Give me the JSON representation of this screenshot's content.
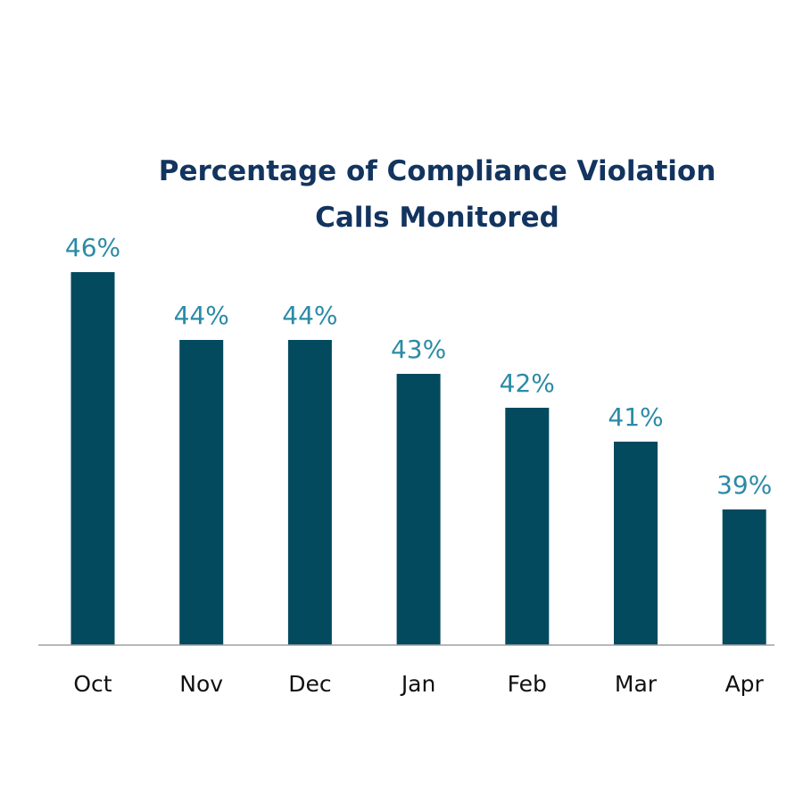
{
  "chart_data": {
    "type": "bar",
    "title": [
      "Percentage of Compliance Violation",
      "Calls Monitored"
    ],
    "xlabel": "",
    "ylabel": "",
    "categories": [
      "Oct",
      "Nov",
      "Dec",
      "Jan",
      "Feb",
      "Mar",
      "Apr"
    ],
    "series": [
      {
        "values": [
          46,
          44,
          44,
          43,
          42,
          41,
          39
        ],
        "value_labels": [
          "46%",
          "44%",
          "44%",
          "43%",
          "42%",
          "41%",
          "39%"
        ],
        "color": "#034a5f"
      }
    ],
    "ylim": [
      35,
      46
    ],
    "grid": false,
    "legend": "none",
    "data_label_color": "#2b8ba5",
    "axis_color": "#a0a0a0",
    "title_color": "#12345f"
  }
}
